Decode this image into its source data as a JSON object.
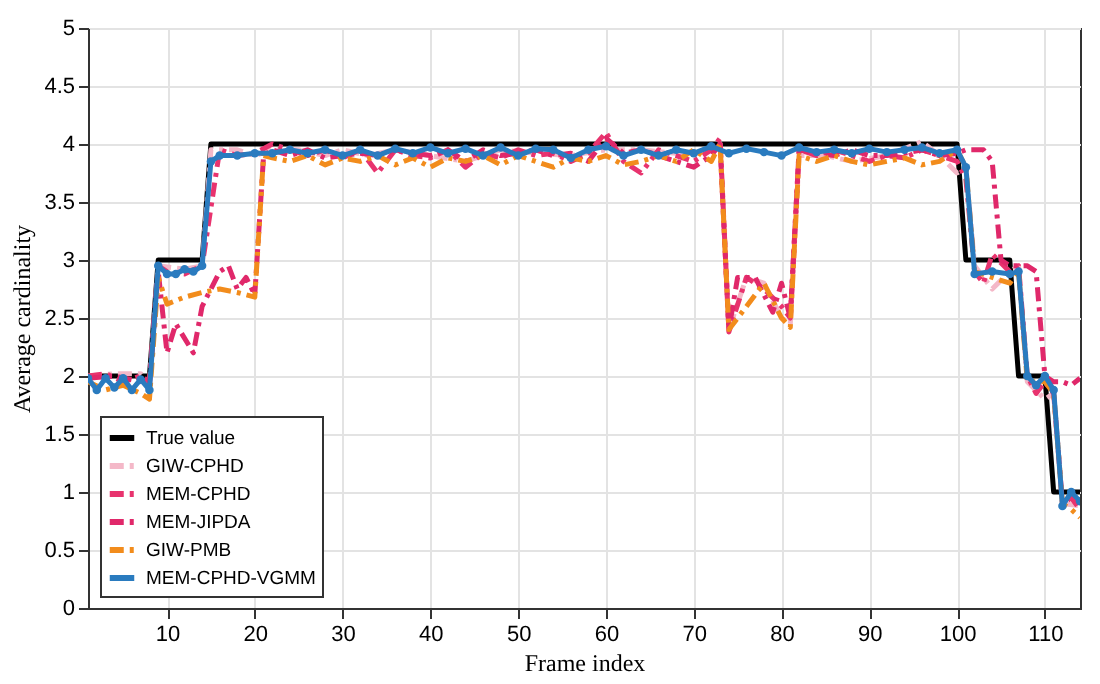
{
  "chart_data": {
    "type": "line",
    "xlabel": "Frame index",
    "ylabel": "Average cardinality",
    "xlim": [
      1,
      114
    ],
    "xticks": [
      10,
      20,
      30,
      40,
      50,
      60,
      70,
      80,
      90,
      100,
      110
    ],
    "ylim": [
      0,
      5
    ],
    "yticks": [
      0,
      0.5,
      1,
      1.5,
      2,
      2.5,
      3,
      3.5,
      4,
      4.5,
      5
    ],
    "grid": true,
    "legend": "bottom left",
    "series": [
      {
        "name": "True value",
        "color": "#000000",
        "line_style": "solid",
        "marker": "none",
        "x": [
          1,
          8,
          9,
          14,
          15,
          100,
          101,
          106,
          107,
          110,
          111,
          114
        ],
        "values": [
          2,
          2,
          3,
          3,
          4,
          4,
          3,
          3,
          2,
          2,
          1,
          1
        ]
      },
      {
        "name": "GIW-CPHD",
        "color": "#f4b8c8",
        "line_style": "dashed",
        "marker": "none",
        "x": [
          1,
          4,
          7,
          8,
          9,
          12,
          14,
          15,
          18,
          20,
          22,
          25,
          28,
          30,
          33,
          36,
          40,
          44,
          48,
          52,
          56,
          60,
          64,
          68,
          72,
          73,
          74,
          76,
          78,
          80,
          81,
          82,
          85,
          88,
          92,
          96,
          98,
          100,
          101,
          102,
          104,
          106,
          107,
          108,
          110,
          111,
          112,
          114
        ],
        "values": [
          2.0,
          2.02,
          2.02,
          1.95,
          2.95,
          2.92,
          2.95,
          3.95,
          3.95,
          3.9,
          3.95,
          3.95,
          3.9,
          3.95,
          3.9,
          3.95,
          3.9,
          3.85,
          3.95,
          3.92,
          3.9,
          3.95,
          3.95,
          3.92,
          3.95,
          4.0,
          2.4,
          2.85,
          2.8,
          2.5,
          2.45,
          3.9,
          3.9,
          3.85,
          3.9,
          4.02,
          3.9,
          3.75,
          3.8,
          2.95,
          2.75,
          2.9,
          2.95,
          1.95,
          1.8,
          1.85,
          0.9,
          0.88
        ]
      },
      {
        "name": "MEM-CPHD",
        "color": "#e8336e",
        "line_style": "dashed",
        "marker": "none",
        "x": [
          1,
          3,
          5,
          7,
          8,
          9,
          10,
          12,
          14,
          16,
          18,
          20,
          22,
          24,
          26,
          28,
          30,
          32,
          34,
          36,
          38,
          40,
          42,
          44,
          46,
          48,
          50,
          52,
          54,
          56,
          58,
          60,
          62,
          64,
          66,
          68,
          70,
          72,
          73,
          74,
          76,
          78,
          80,
          81,
          82,
          84,
          86,
          88,
          90,
          92,
          94,
          96,
          98,
          100,
          101,
          102,
          103,
          104,
          106,
          107,
          108,
          109,
          110,
          111,
          112,
          113,
          114
        ],
        "values": [
          2.0,
          2.02,
          1.95,
          2.0,
          1.95,
          2.95,
          2.9,
          2.88,
          2.95,
          3.95,
          3.9,
          3.92,
          4.0,
          3.95,
          3.9,
          3.95,
          3.88,
          3.95,
          3.75,
          3.95,
          3.9,
          3.88,
          3.95,
          3.8,
          3.92,
          3.88,
          3.95,
          3.9,
          3.92,
          3.85,
          3.92,
          4.1,
          3.85,
          3.75,
          3.95,
          3.9,
          3.85,
          3.95,
          4.05,
          2.38,
          2.85,
          2.75,
          2.6,
          2.5,
          3.95,
          3.9,
          3.95,
          3.9,
          3.85,
          3.9,
          3.88,
          3.95,
          3.9,
          3.85,
          3.7,
          2.9,
          2.8,
          3.05,
          2.9,
          2.95,
          2.0,
          1.85,
          1.95,
          1.85,
          0.9,
          0.95,
          0.85
        ]
      },
      {
        "name": "MEM-JIPDA",
        "color": "#e0286a",
        "line_style": "dashed",
        "marker": "none",
        "x": [
          1,
          4,
          7,
          8,
          9,
          10,
          11,
          13,
          14,
          16,
          17,
          18,
          19,
          20,
          21,
          22,
          24,
          26,
          28,
          30,
          32,
          34,
          36,
          38,
          40,
          42,
          44,
          46,
          48,
          50,
          52,
          54,
          56,
          58,
          60,
          62,
          64,
          66,
          68,
          70,
          72,
          73,
          74,
          75,
          77,
          79,
          80,
          81,
          82,
          84,
          86,
          88,
          90,
          92,
          94,
          96,
          98,
          100,
          101,
          103,
          104,
          105,
          106,
          108,
          109,
          110,
          111,
          112,
          113,
          114
        ],
        "values": [
          1.98,
          2.0,
          1.95,
          1.92,
          2.9,
          2.2,
          2.45,
          2.2,
          2.6,
          2.9,
          2.95,
          2.75,
          2.85,
          2.7,
          3.9,
          3.95,
          3.9,
          3.95,
          3.88,
          3.9,
          3.92,
          3.9,
          3.95,
          3.92,
          3.9,
          3.95,
          3.85,
          3.95,
          3.9,
          3.92,
          3.95,
          3.9,
          3.92,
          3.85,
          4.05,
          3.92,
          3.95,
          3.9,
          3.85,
          3.8,
          3.9,
          4.0,
          2.4,
          2.85,
          2.85,
          2.55,
          2.8,
          2.5,
          3.95,
          3.92,
          3.9,
          3.95,
          3.9,
          3.9,
          3.92,
          3.95,
          3.9,
          3.92,
          3.95,
          3.95,
          3.85,
          3.0,
          2.95,
          2.95,
          2.9,
          2.0,
          1.95,
          1.95,
          1.92,
          1.98
        ]
      },
      {
        "name": "GIW-PMB",
        "color": "#f28c1c",
        "line_style": "dashed",
        "marker": "none",
        "x": [
          1,
          3,
          5,
          7,
          8,
          9,
          10,
          12,
          14,
          16,
          18,
          20,
          21,
          22,
          24,
          26,
          28,
          30,
          32,
          34,
          36,
          38,
          40,
          42,
          44,
          46,
          48,
          50,
          52,
          54,
          56,
          58,
          60,
          62,
          64,
          66,
          68,
          70,
          72,
          73,
          74,
          76,
          78,
          80,
          81,
          82,
          84,
          86,
          88,
          90,
          92,
          94,
          96,
          98,
          100,
          101,
          102,
          104,
          106,
          107,
          108,
          110,
          111,
          112,
          113,
          114
        ],
        "values": [
          1.95,
          1.88,
          1.92,
          1.85,
          1.8,
          2.85,
          2.62,
          2.68,
          2.72,
          2.75,
          2.72,
          2.68,
          3.9,
          3.88,
          3.85,
          3.9,
          3.82,
          3.88,
          3.85,
          3.9,
          3.82,
          3.88,
          3.8,
          3.88,
          3.85,
          3.9,
          3.82,
          3.9,
          3.85,
          3.8,
          3.88,
          3.85,
          3.9,
          3.82,
          3.85,
          3.9,
          3.85,
          3.95,
          3.85,
          4.0,
          2.4,
          2.6,
          2.8,
          2.5,
          2.42,
          3.9,
          3.85,
          3.9,
          3.85,
          3.82,
          3.85,
          3.88,
          3.82,
          3.85,
          3.95,
          3.8,
          2.9,
          2.85,
          2.8,
          2.9,
          1.95,
          1.95,
          1.85,
          0.9,
          0.85,
          0.78
        ]
      },
      {
        "name": "MEM-CPHD-VGMM",
        "color": "#2a7bbf",
        "line_style": "solid",
        "marker": "circle",
        "x": [
          1,
          2,
          3,
          4,
          5,
          6,
          7,
          8,
          9,
          10,
          11,
          12,
          13,
          14,
          15,
          16,
          18,
          20,
          22,
          24,
          26,
          28,
          30,
          32,
          34,
          36,
          38,
          40,
          42,
          44,
          46,
          48,
          50,
          52,
          54,
          56,
          58,
          60,
          62,
          64,
          66,
          68,
          70,
          72,
          74,
          76,
          78,
          80,
          82,
          84,
          86,
          88,
          90,
          92,
          94,
          96,
          98,
          100,
          101,
          102,
          104,
          106,
          107,
          108,
          109,
          110,
          111,
          112,
          113,
          114
        ],
        "values": [
          1.98,
          1.88,
          1.98,
          1.9,
          1.98,
          1.88,
          1.97,
          1.88,
          2.95,
          2.88,
          2.88,
          2.92,
          2.9,
          2.95,
          3.85,
          3.9,
          3.9,
          3.92,
          3.92,
          3.95,
          3.92,
          3.95,
          3.9,
          3.95,
          3.9,
          3.96,
          3.92,
          3.97,
          3.92,
          3.96,
          3.9,
          3.97,
          3.9,
          3.96,
          3.95,
          3.88,
          3.95,
          3.98,
          3.9,
          3.95,
          3.9,
          3.95,
          3.92,
          3.98,
          3.92,
          3.96,
          3.93,
          3.9,
          3.97,
          3.93,
          3.95,
          3.92,
          3.96,
          3.93,
          3.95,
          3.97,
          3.92,
          3.95,
          3.8,
          2.88,
          2.9,
          2.88,
          2.9,
          2.0,
          1.92,
          2.0,
          1.88,
          0.88,
          1.0,
          0.92
        ]
      }
    ]
  }
}
